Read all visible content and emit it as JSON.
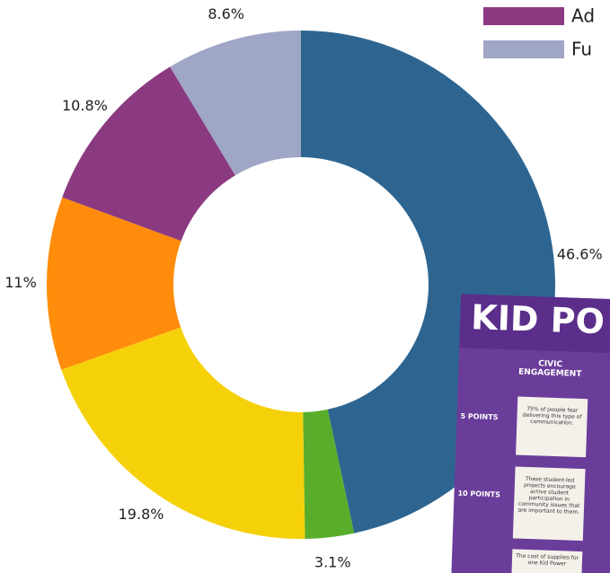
{
  "chart_data": {
    "type": "donut",
    "categories": [
      null,
      null,
      null,
      null,
      "Ad",
      "Fu"
    ],
    "values": [
      46.6,
      3.1,
      19.8,
      11,
      10.8,
      8.6
    ],
    "value_labels": [
      "46.6%",
      "3.1%",
      "19.8%",
      "11%",
      "10.8%",
      "8.6%"
    ],
    "colors": [
      "#2e6590",
      "#5aad2a",
      "#f5d10a",
      "#ff8c0a",
      "#8b3a82",
      "#9fa6c6"
    ]
  },
  "inset": {
    "title": "KID PO",
    "column": "CIVIC ENGAGEMENT",
    "rows": [
      "5 POINTS",
      "10 POINTS"
    ],
    "cards": [
      "75% of people fear delivering this type of communication.",
      "These student-led projects encourage active student participation in community issues that are important to them.",
      "The cost of supplies for one Kid Power"
    ]
  }
}
